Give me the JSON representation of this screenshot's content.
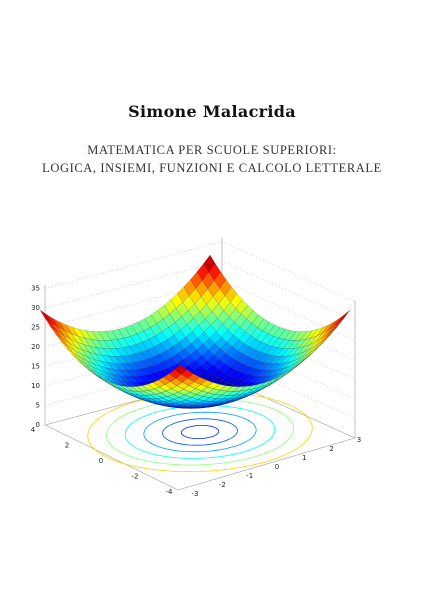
{
  "author": "Simone Malacrida",
  "title": [
    "MATEMATICA PER SCUOLE SUPERIORI:",
    "LOGICA, INSIEMI, FUNZIONI E CALCOLO LETTERALE"
  ],
  "figure": {
    "z_ticks": [
      0,
      5,
      10,
      15,
      20,
      25,
      30,
      35
    ],
    "x_ticks": [
      4,
      2,
      0,
      -2,
      -4
    ],
    "y_ticks": [
      -3,
      -2,
      -1,
      0,
      1,
      2,
      3
    ]
  }
}
